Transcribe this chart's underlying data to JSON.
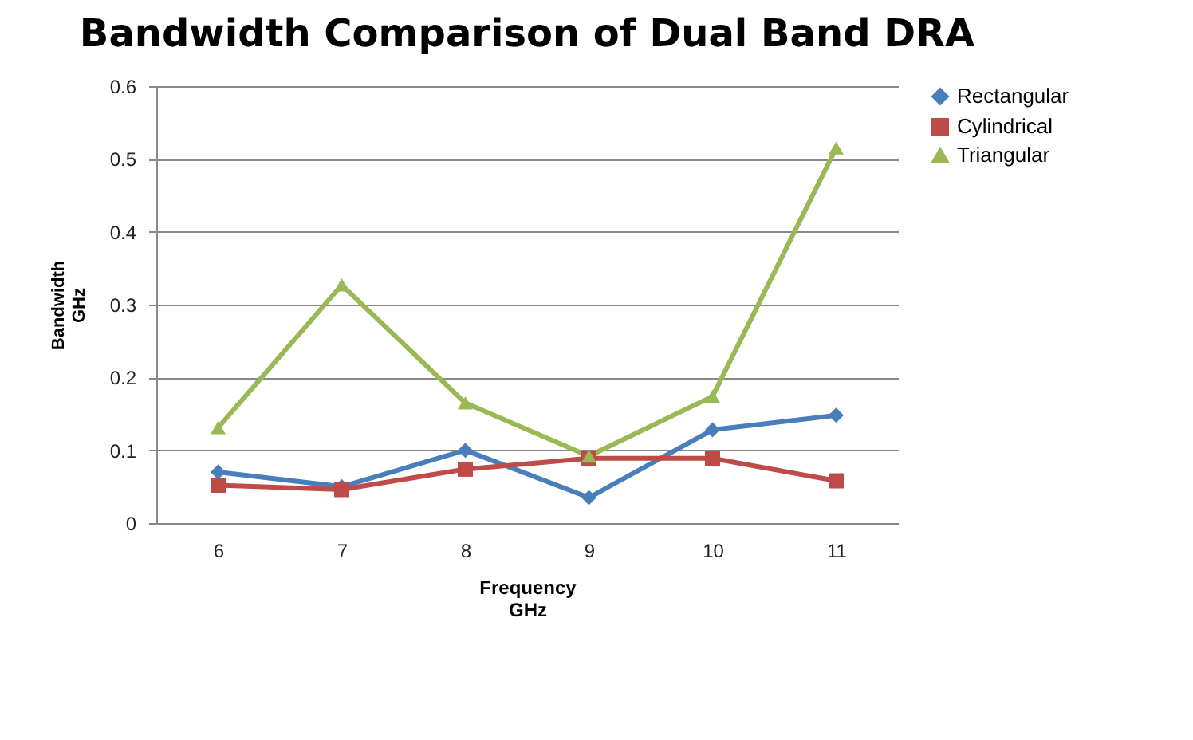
{
  "chart_data": {
    "type": "line",
    "title": "Bandwidth Comparison of Dual Band DRA",
    "xlabel": "Frequency\nGHz",
    "ylabel": "Bandwidth\nGHz",
    "categories": [
      "6",
      "7",
      "8",
      "9",
      "10",
      "11"
    ],
    "series": [
      {
        "name": "Rectangular",
        "color": "#4a7ebb",
        "marker": "diamond",
        "values": [
          0.07,
          0.05,
          0.1,
          0.035,
          0.128,
          0.148
        ]
      },
      {
        "name": "Cylindrical",
        "color": "#be4b48",
        "marker": "square",
        "values": [
          0.052,
          0.046,
          0.074,
          0.089,
          0.089,
          0.058
        ]
      },
      {
        "name": "Triangular",
        "color": "#98b954",
        "marker": "triangle",
        "values": [
          0.131,
          0.327,
          0.165,
          0.092,
          0.174,
          0.515
        ]
      }
    ],
    "ylim": [
      0,
      0.6
    ],
    "yticks": [
      0,
      0.1,
      0.2,
      0.3,
      0.4,
      0.5,
      0.6
    ],
    "grid": "y",
    "legend": "right"
  }
}
